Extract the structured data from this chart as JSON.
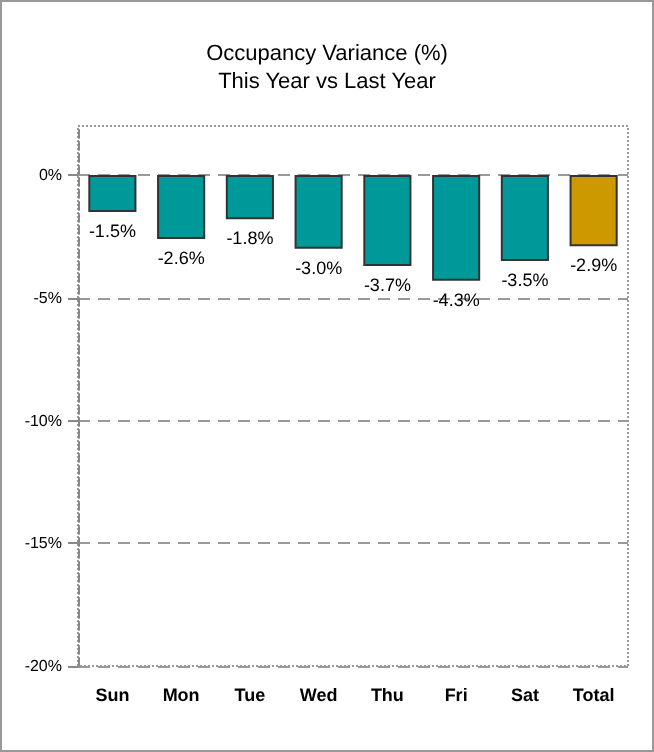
{
  "chart_data": {
    "type": "bar",
    "title": "Occupancy Variance (%)\nThis Year vs Last Year",
    "categories": [
      "Sun",
      "Mon",
      "Tue",
      "Wed",
      "Thu",
      "Fri",
      "Sat",
      "Total"
    ],
    "values": [
      -1.5,
      -2.6,
      -1.8,
      -3.0,
      -3.7,
      -4.3,
      -3.5,
      -2.9
    ],
    "colors": [
      "#009999",
      "#009999",
      "#009999",
      "#009999",
      "#009999",
      "#009999",
      "#009999",
      "#cc9900"
    ],
    "value_labels": [
      "-1.5%",
      "-2.6%",
      "-1.8%",
      "-3.0%",
      "-3.7%",
      "-4.3%",
      "-3.5%",
      "-2.9%"
    ],
    "ylim": [
      -20,
      2
    ],
    "yticks": [
      {
        "value": 0,
        "label": "0%"
      },
      {
        "value": -5,
        "label": "-5%"
      },
      {
        "value": -10,
        "label": "-10%"
      },
      {
        "value": -15,
        "label": "-15%"
      },
      {
        "value": -20,
        "label": "-20%"
      }
    ],
    "grid": "y"
  }
}
